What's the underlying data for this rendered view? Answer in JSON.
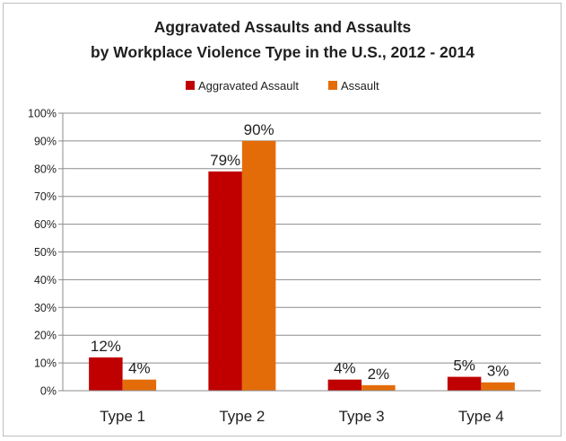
{
  "chart_data": {
    "type": "bar",
    "title_line1": "Aggravated Assaults and Assaults",
    "title_line2": "by Workplace Violence Type in the U.S., 2012 - 2014",
    "categories": [
      "Type 1",
      "Type 2",
      "Type 3",
      "Type 4"
    ],
    "series": [
      {
        "name": "Aggravated Assault",
        "color": "#c00000",
        "values": [
          12,
          79,
          4,
          5
        ],
        "labels": [
          "12%",
          "79%",
          "4%",
          "5%"
        ]
      },
      {
        "name": "Assault",
        "color": "#e36c09",
        "values": [
          4,
          90,
          2,
          3
        ],
        "labels": [
          "4%",
          "90%",
          "2%",
          "3%"
        ]
      }
    ],
    "yticks": [
      "0%",
      "10%",
      "20%",
      "30%",
      "40%",
      "50%",
      "60%",
      "70%",
      "80%",
      "90%",
      "100%"
    ],
    "ylim": [
      0,
      100
    ],
    "grid": true,
    "legend_position": "top-center"
  }
}
